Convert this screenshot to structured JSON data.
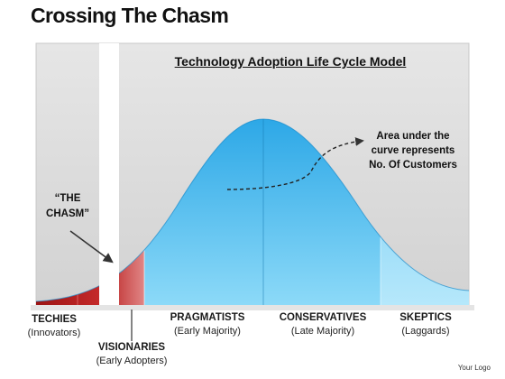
{
  "title": "Crossing The Chasm",
  "model_title": "Technology Adoption Life Cycle Model",
  "chasm_label_line1": "“THE",
  "chasm_label_line2": "CHASM”",
  "area_note": {
    "line1": "Area under the",
    "line2": "curve represents",
    "line3": "No. Of Customers"
  },
  "segments": [
    {
      "name": "TECHIES",
      "sub": "(Innovators)"
    },
    {
      "name": "VISIONARIES",
      "sub": "(Early Adopters)"
    },
    {
      "name": "PRAGMATISTS",
      "sub": "(Early Majority)"
    },
    {
      "name": "CONSERVATIVES",
      "sub": "(Late Majority)"
    },
    {
      "name": "SKEPTICS",
      "sub": "(Laggards)"
    }
  ],
  "logo": "Your Logo",
  "colors": {
    "innovators_red": "#b01c1c",
    "early_adopters_red": "#d86a6a",
    "majority_blue": "#2aa8e6",
    "laggards_blue": "#8ad6f6",
    "panel_gray": "#dcdcdc"
  }
}
